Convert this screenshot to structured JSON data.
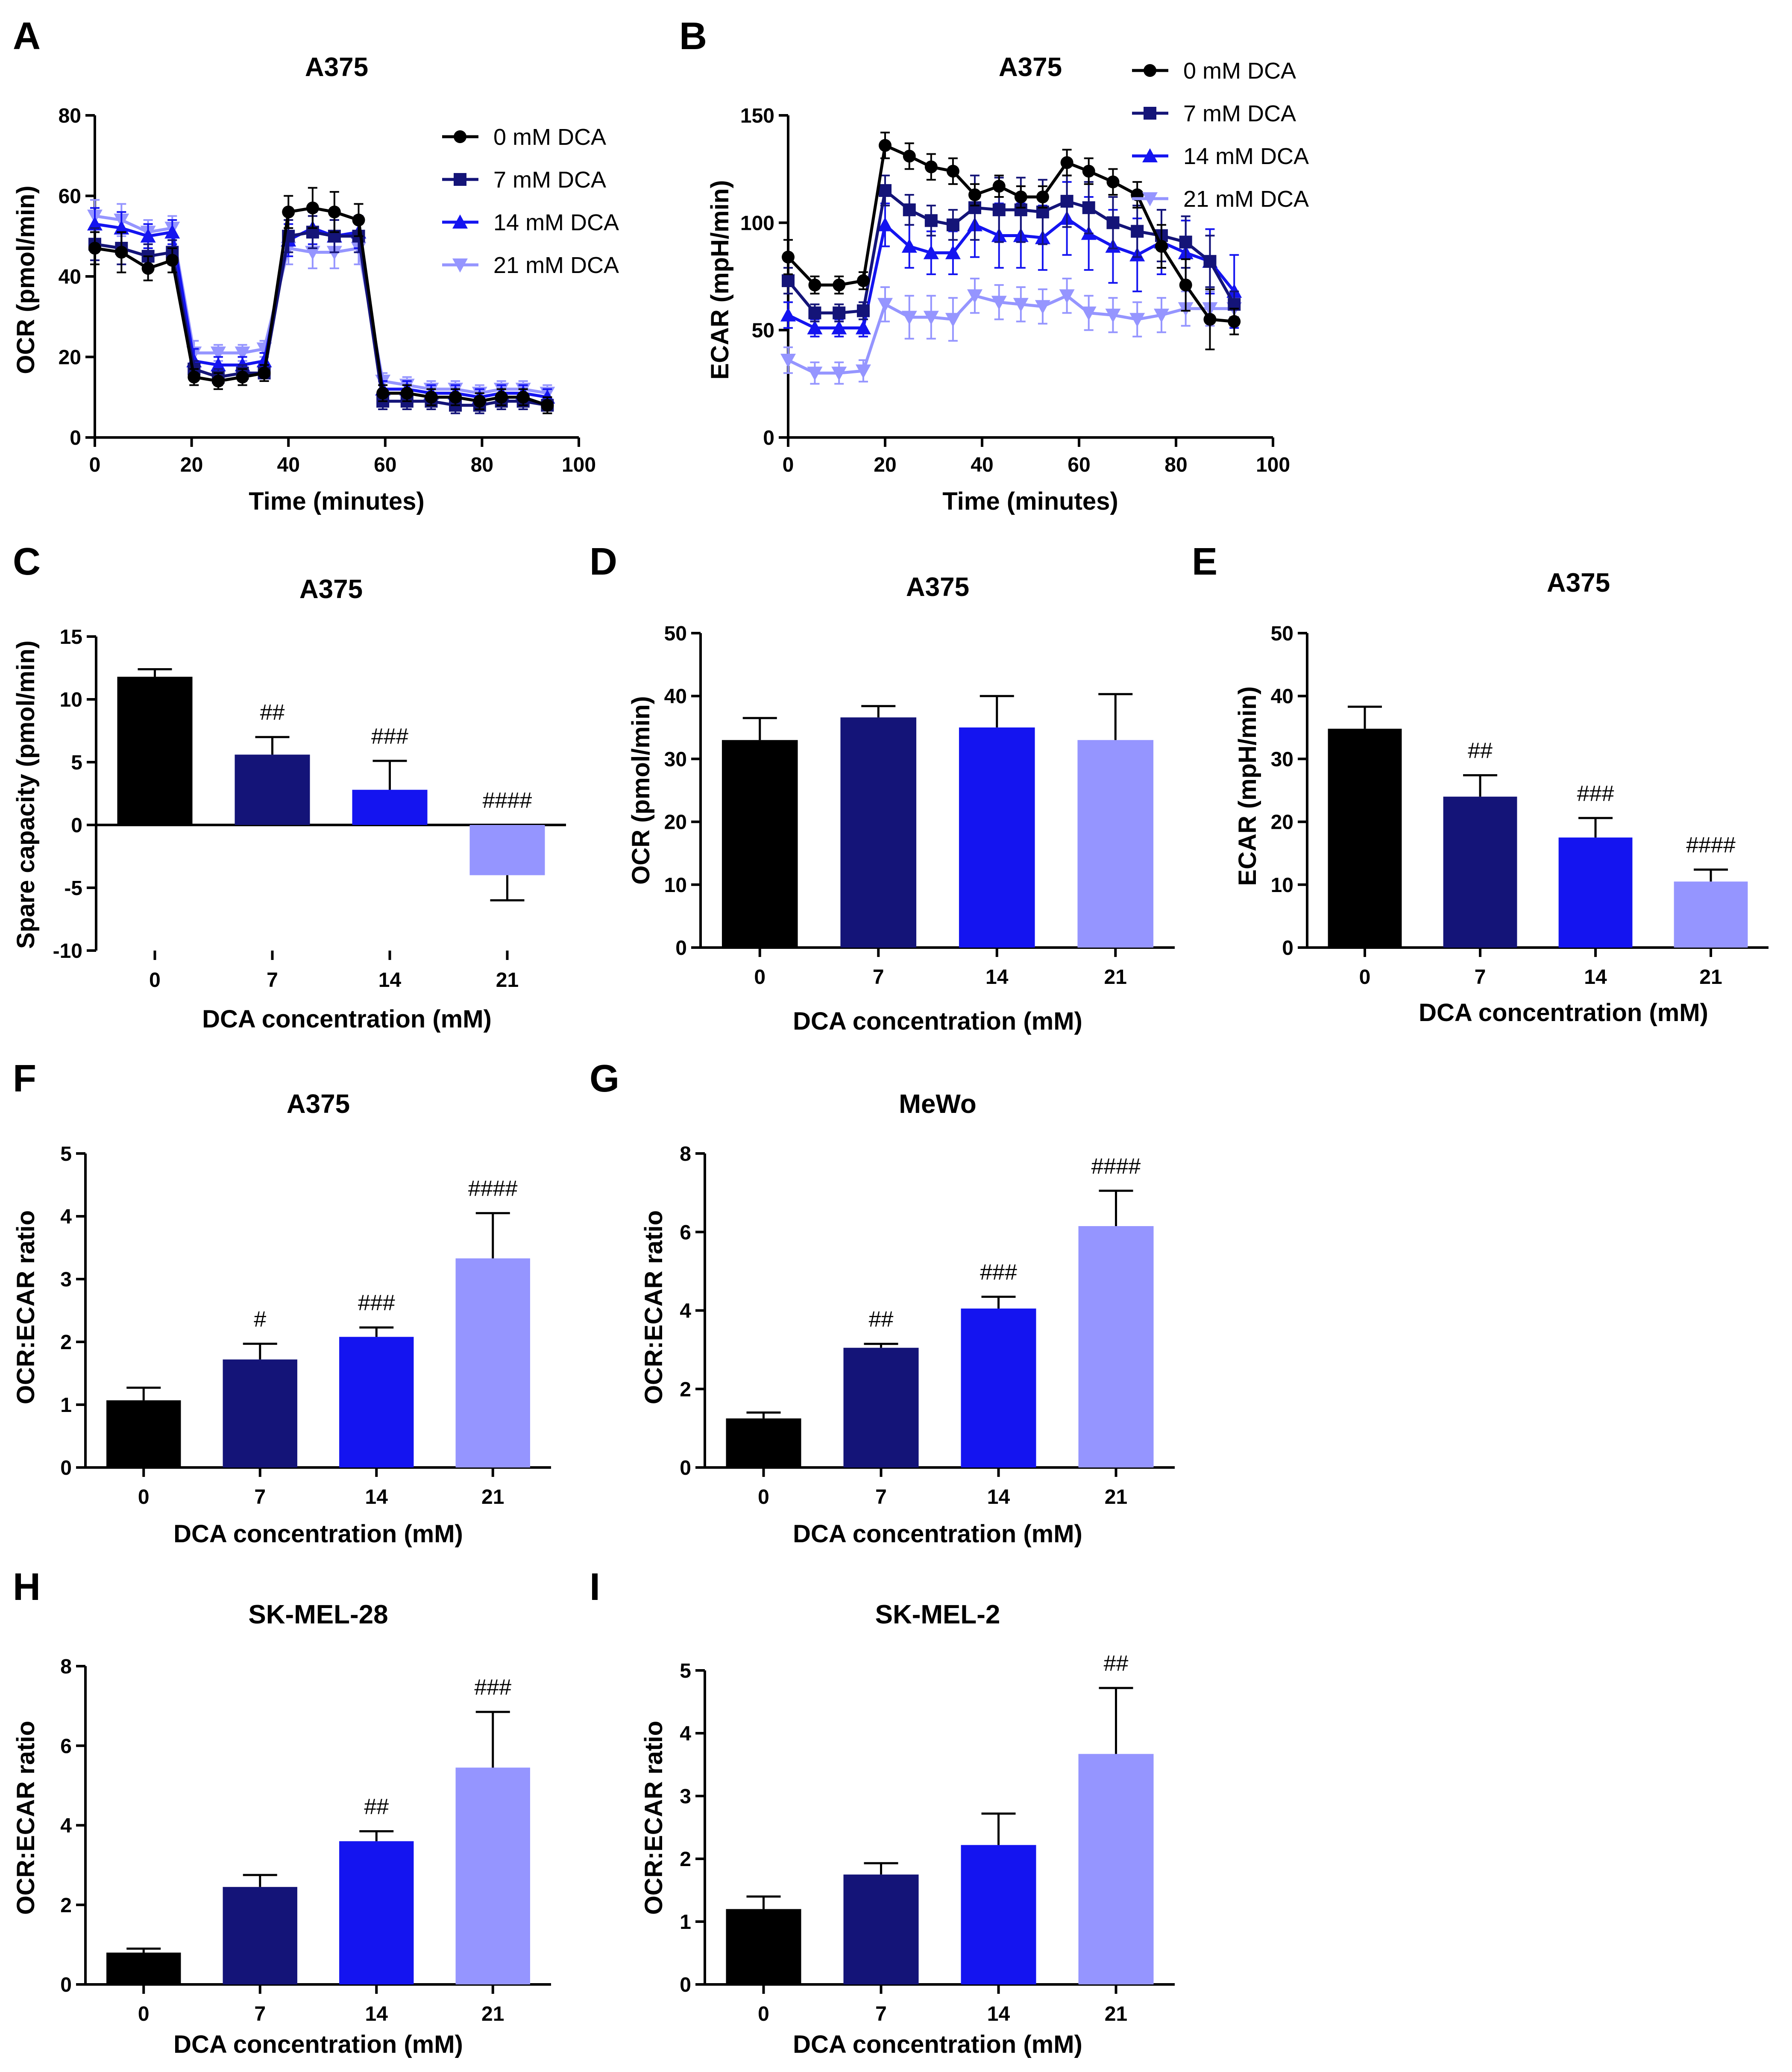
{
  "series_colors": [
    "#000000",
    "#141478",
    "#1414f0",
    "#9595ff"
  ],
  "chart_data": [
    {
      "id": "A",
      "type": "line",
      "title": "A375",
      "xlabel": "Time (minutes)",
      "ylabel": "OCR (pmol/min)",
      "xlim": [
        0,
        100
      ],
      "xticks": [
        0,
        20,
        40,
        60,
        80,
        100
      ],
      "ylim": [
        0,
        80
      ],
      "yticks": [
        0,
        20,
        40,
        60,
        80
      ],
      "legend_position": "top-right",
      "x": [
        0,
        5.5,
        11,
        16,
        20.5,
        25.5,
        30.5,
        35,
        40,
        45,
        49.5,
        54.5,
        59.5,
        64.5,
        69.5,
        74.5,
        79.5,
        84,
        88.5,
        93.5
      ],
      "series": [
        {
          "name": "0 mM  DCA",
          "marker": "circle",
          "values": [
            47,
            46,
            42,
            44,
            15,
            14,
            15,
            16,
            56,
            57,
            56,
            54,
            11,
            11,
            10,
            10,
            9,
            10,
            10,
            8
          ],
          "errors": [
            4,
            5,
            3,
            3,
            2,
            2,
            2,
            2,
            4,
            5,
            5,
            4,
            2,
            2,
            2,
            2,
            2,
            2,
            2,
            2
          ]
        },
        {
          "name": "7 mM  DCA",
          "marker": "square",
          "values": [
            48,
            47,
            45,
            46,
            17,
            15,
            16,
            16,
            50,
            51,
            50,
            50,
            9,
            9,
            9,
            8,
            8,
            9,
            9,
            8
          ],
          "errors": [
            4,
            4,
            3,
            3,
            2,
            2,
            2,
            2,
            4,
            4,
            4,
            4,
            2,
            2,
            2,
            2,
            2,
            2,
            2,
            2
          ]
        },
        {
          "name": "14 mM  DCA",
          "marker": "triangle",
          "values": [
            53,
            52,
            50,
            51,
            19,
            18,
            18,
            19,
            49,
            52,
            50,
            51,
            12,
            12,
            11,
            11,
            10,
            11,
            11,
            10
          ],
          "errors": [
            4,
            4,
            3,
            3,
            3,
            2,
            2,
            2,
            4,
            4,
            4,
            4,
            2,
            2,
            2,
            2,
            2,
            2,
            2,
            2
          ]
        },
        {
          "name": "21 mM  DCA",
          "marker": "triangle-down",
          "values": [
            55,
            54,
            51,
            52,
            21,
            21,
            21,
            22,
            47,
            46,
            46,
            47,
            14,
            13,
            12,
            12,
            11,
            12,
            12,
            11
          ],
          "errors": [
            4,
            4,
            3,
            3,
            3,
            2,
            2,
            2,
            4,
            4,
            4,
            4,
            2,
            2,
            2,
            2,
            2,
            2,
            2,
            2
          ]
        }
      ]
    },
    {
      "id": "B",
      "type": "line",
      "title": "A375",
      "xlabel": "Time (minutes)",
      "ylabel": "ECAR (mpH/min)",
      "xlim": [
        0,
        100
      ],
      "xticks": [
        0,
        20,
        40,
        60,
        80,
        100
      ],
      "ylim": [
        0,
        150
      ],
      "yticks": [
        0,
        50,
        100,
        150
      ],
      "legend_position": "top-right",
      "x": [
        0,
        5.5,
        10.5,
        15.5,
        20,
        25,
        29.5,
        34,
        38.5,
        43.5,
        48,
        52.5,
        57.5,
        62,
        67,
        72,
        77,
        82,
        87,
        92
      ],
      "series": [
        {
          "name": "0 mM DCA",
          "marker": "circle",
          "values": [
            84,
            71,
            71,
            73,
            136,
            131,
            126,
            124,
            113,
            117,
            112,
            112,
            128,
            124,
            119,
            113,
            89,
            71,
            55,
            54
          ],
          "errors": [
            8,
            4,
            4,
            4,
            6,
            6,
            6,
            6,
            5,
            5,
            5,
            5,
            6,
            6,
            6,
            6,
            10,
            12,
            14,
            6
          ]
        },
        {
          "name": "7 mM DCA",
          "marker": "square",
          "values": [
            73,
            58,
            58,
            59,
            115,
            106,
            101,
            99,
            107,
            106,
            106,
            105,
            110,
            107,
            100,
            96,
            94,
            91,
            82,
            62
          ],
          "errors": [
            6,
            4,
            4,
            4,
            7,
            7,
            7,
            7,
            15,
            15,
            15,
            15,
            12,
            12,
            12,
            12,
            12,
            12,
            12,
            6
          ]
        },
        {
          "name": "14 mM DCA",
          "marker": "triangle",
          "values": [
            57,
            51,
            51,
            51,
            99,
            89,
            86,
            86,
            99,
            94,
            94,
            93,
            102,
            95,
            89,
            85,
            91,
            86,
            82,
            68
          ],
          "errors": [
            6,
            4,
            4,
            4,
            10,
            10,
            10,
            10,
            15,
            15,
            15,
            15,
            17,
            17,
            17,
            17,
            15,
            15,
            15,
            17
          ]
        },
        {
          "name": "21 mM DCA",
          "marker": "triangle-down",
          "values": [
            36,
            30,
            30,
            31,
            62,
            56,
            56,
            55,
            66,
            63,
            62,
            61,
            66,
            58,
            57,
            55,
            57,
            60,
            60,
            60
          ],
          "errors": [
            6,
            5,
            5,
            5,
            8,
            10,
            10,
            10,
            8,
            8,
            8,
            8,
            8,
            8,
            8,
            8,
            8,
            8,
            8,
            8
          ]
        }
      ]
    },
    {
      "id": "C",
      "type": "bar",
      "title": "A375",
      "xlabel": "DCA concentration (mM)",
      "ylabel": "Spare capacity (pmol/min)",
      "ylim": [
        -10,
        15
      ],
      "yticks": [
        -10,
        -5,
        0,
        5,
        10,
        15
      ],
      "categories": [
        "0",
        "7",
        "14",
        "21"
      ],
      "values": [
        11.8,
        5.6,
        2.8,
        -4.0
      ],
      "errors": [
        0.6,
        1.4,
        2.3,
        2.0
      ],
      "annotations": [
        "",
        "##",
        "###",
        "####"
      ]
    },
    {
      "id": "D",
      "type": "bar",
      "title": "A375",
      "xlabel": "DCA concentration (mM)",
      "ylabel": "OCR (pmol/min)",
      "ylim": [
        0,
        50
      ],
      "yticks": [
        0,
        10,
        20,
        30,
        40,
        50
      ],
      "categories": [
        "0",
        "7",
        "14",
        "21"
      ],
      "values": [
        33,
        36.6,
        35,
        33
      ],
      "errors": [
        3.5,
        1.8,
        5.0,
        7.3
      ],
      "annotations": [
        "",
        "",
        "",
        ""
      ]
    },
    {
      "id": "E",
      "type": "bar",
      "title": "A375",
      "xlabel": "DCA concentration (mM)",
      "ylabel": "ECAR (mpH/min)",
      "ylim": [
        0,
        50
      ],
      "yticks": [
        0,
        10,
        20,
        30,
        40,
        50
      ],
      "categories": [
        "0",
        "7",
        "14",
        "21"
      ],
      "values": [
        34.8,
        24,
        17.5,
        10.5
      ],
      "errors": [
        3.5,
        3.4,
        3.1,
        1.9
      ],
      "annotations": [
        "",
        "##",
        "###",
        "####"
      ]
    },
    {
      "id": "F",
      "type": "bar",
      "title": "A375",
      "xlabel": "DCA concentration (mM)",
      "ylabel": "OCR:ECAR ratio",
      "ylim": [
        0,
        5
      ],
      "yticks": [
        0,
        1,
        2,
        3,
        4,
        5
      ],
      "categories": [
        "0",
        "7",
        "14",
        "21"
      ],
      "values": [
        1.07,
        1.72,
        2.08,
        3.33
      ],
      "errors": [
        0.2,
        0.25,
        0.15,
        0.72
      ],
      "annotations": [
        "",
        "#",
        "###",
        "####"
      ]
    },
    {
      "id": "G",
      "type": "bar",
      "title": "MeWo",
      "xlabel": "DCA concentration (mM)",
      "ylabel": "OCR:ECAR ratio",
      "ylim": [
        0,
        8
      ],
      "yticks": [
        0,
        2,
        4,
        6,
        8
      ],
      "categories": [
        "0",
        "7",
        "14",
        "21"
      ],
      "values": [
        1.25,
        3.05,
        4.05,
        6.15
      ],
      "errors": [
        0.15,
        0.1,
        0.3,
        0.9
      ],
      "annotations": [
        "",
        "##",
        "###",
        "####"
      ]
    },
    {
      "id": "H",
      "type": "bar",
      "title": "SK-MEL-28",
      "xlabel": "DCA concentration (mM)",
      "ylabel": "OCR:ECAR ratio",
      "ylim": [
        0,
        8
      ],
      "yticks": [
        0,
        2,
        4,
        6,
        8
      ],
      "categories": [
        "0",
        "7",
        "14",
        "21"
      ],
      "values": [
        0.8,
        2.45,
        3.6,
        5.45
      ],
      "errors": [
        0.1,
        0.3,
        0.25,
        1.4
      ],
      "annotations": [
        "",
        "",
        "##",
        "###"
      ]
    },
    {
      "id": "I",
      "type": "bar",
      "title": "SK-MEL-2",
      "xlabel": "DCA concentration (mM)",
      "ylabel": "OCR:ECAR ratio",
      "ylim": [
        0,
        5
      ],
      "yticks": [
        0,
        1,
        2,
        3,
        4,
        5
      ],
      "categories": [
        "0",
        "7",
        "14",
        "21"
      ],
      "values": [
        1.2,
        1.75,
        2.22,
        3.67
      ],
      "errors": [
        0.2,
        0.18,
        0.5,
        1.05
      ],
      "annotations": [
        "",
        "",
        "",
        "##"
      ]
    }
  ]
}
